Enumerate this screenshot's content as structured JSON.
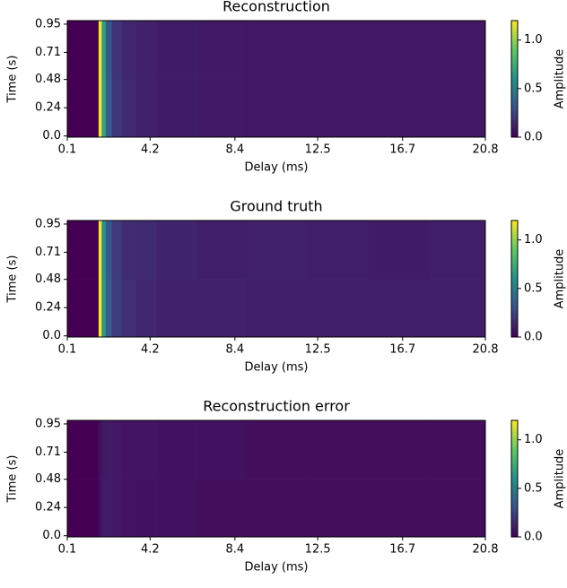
{
  "chart_data": [
    {
      "type": "heatmap",
      "title": "Reconstruction",
      "x_label": "Delay (ms)",
      "y_label": "Time (s)",
      "colorbar_label": "Amplitude",
      "colormap": "viridis",
      "x_bins": [
        0.1,
        1.65,
        1.8,
        2.0,
        2.3,
        2.8,
        3.5,
        4.5,
        6.5,
        9,
        12,
        15,
        18,
        20.8
      ],
      "y_bins": [
        -0.01,
        0.48,
        0.98
      ],
      "values": [
        [
          0,
          1.2,
          0.7,
          0.35,
          0.2,
          0.15,
          0.12,
          0.1,
          0.09,
          0.08,
          0.08,
          0.08,
          0.08
        ],
        [
          0,
          1.2,
          0.68,
          0.33,
          0.19,
          0.14,
          0.12,
          0.1,
          0.09,
          0.08,
          0.08,
          0.08,
          0.08
        ]
      ],
      "xlim": [
        0.1,
        20.8
      ],
      "xticks": [
        0.1,
        4.2,
        8.4,
        12.5,
        16.7,
        20.8
      ],
      "ylim": [
        -0.01,
        0.98
      ],
      "yticks": [
        {
          "value": 0,
          "label": "0.0"
        },
        0.24,
        0.48,
        0.71,
        0.95
      ],
      "clim": [
        0,
        1.2
      ],
      "cticks": [
        {
          "value": 0,
          "label": "0.0"
        },
        0.5,
        {
          "value": 1,
          "label": "1.0"
        }
      ]
    },
    {
      "type": "heatmap",
      "title": "Ground truth",
      "x_label": "Delay (ms)",
      "y_label": "Time (s)",
      "colorbar_label": "Amplitude",
      "colormap": "viridis",
      "x_bins": [
        0.1,
        1.65,
        1.8,
        2.0,
        2.3,
        2.8,
        3.5,
        4.5,
        6.5,
        9,
        12,
        15,
        18,
        20.8
      ],
      "y_bins": [
        -0.01,
        0.48,
        0.98
      ],
      "values": [
        [
          0,
          1.2,
          0.65,
          0.35,
          0.22,
          0.17,
          0.14,
          0.12,
          0.12,
          0.11,
          0.11,
          0.11,
          0.11
        ],
        [
          0,
          1.2,
          0.62,
          0.33,
          0.21,
          0.16,
          0.15,
          0.13,
          0.11,
          0.12,
          0.11,
          0.1,
          0.11
        ]
      ],
      "xlim": [
        0.1,
        20.8
      ],
      "xticks": [
        0.1,
        4.2,
        8.4,
        12.5,
        16.7,
        20.8
      ],
      "ylim": [
        -0.01,
        0.98
      ],
      "yticks": [
        {
          "value": 0,
          "label": "0.0"
        },
        0.24,
        0.48,
        0.71,
        0.95
      ],
      "clim": [
        0,
        1.2
      ],
      "cticks": [
        {
          "value": 0,
          "label": "0.0"
        },
        0.5,
        {
          "value": 1,
          "label": "1.0"
        }
      ]
    },
    {
      "type": "heatmap",
      "title": "Reconstruction error",
      "x_label": "Delay (ms)",
      "y_label": "Time (s)",
      "colorbar_label": "Amplitude",
      "colormap": "viridis",
      "x_bins": [
        0.1,
        1.65,
        1.8,
        2.0,
        2.3,
        2.8,
        3.5,
        4.5,
        6.5,
        9,
        12,
        15,
        18,
        20.8
      ],
      "y_bins": [
        -0.01,
        0.48,
        0.98
      ],
      "values": [
        [
          0,
          0.05,
          0.1,
          0.1,
          0.08,
          0.07,
          0.06,
          0.06,
          0.05,
          0.05,
          0.05,
          0.05,
          0.05
        ],
        [
          0,
          0.05,
          0.09,
          0.1,
          0.08,
          0.07,
          0.07,
          0.06,
          0.06,
          0.05,
          0.05,
          0.05,
          0.05
        ]
      ],
      "xlim": [
        0.1,
        20.8
      ],
      "xticks": [
        0.1,
        4.2,
        8.4,
        12.5,
        16.7,
        20.8
      ],
      "ylim": [
        -0.01,
        0.98
      ],
      "yticks": [
        {
          "value": 0,
          "label": "0.0"
        },
        0.24,
        0.48,
        0.71,
        0.95
      ],
      "clim": [
        0,
        1.2
      ],
      "cticks": [
        {
          "value": 0,
          "label": "0.0"
        },
        0.5,
        {
          "value": 1,
          "label": "1.0"
        }
      ]
    }
  ]
}
